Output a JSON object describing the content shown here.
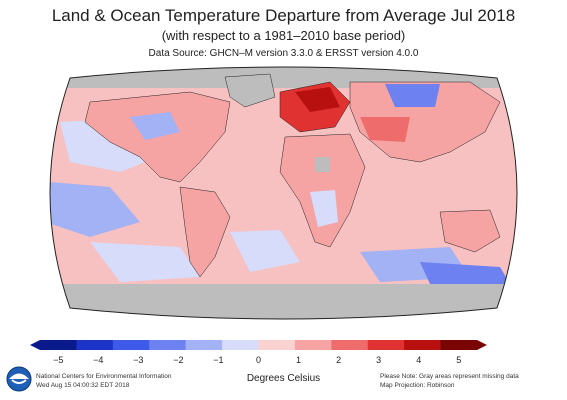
{
  "header": {
    "title": "Land & Ocean Temperature Departure from Average Jul 2018",
    "subtitle": "(with respect to a 1981–2010 base period)",
    "source": "Data Source: GHCN–M version 3.3.0 & ERSST version 4.0.0"
  },
  "scale": {
    "ticks": [
      "−5",
      "−4",
      "−3",
      "−2",
      "−1",
      "0",
      "1",
      "2",
      "3",
      "4",
      "5"
    ],
    "units": "Degrees Celsius",
    "colors": [
      "#0a1a8a",
      "#1c34c8",
      "#3e5ae8",
      "#6d82f0",
      "#a3b1f5",
      "#d6dcfa",
      "#fbd2d2",
      "#f6a3a3",
      "#ef6c6c",
      "#e13232",
      "#b80f0f",
      "#7a0505"
    ],
    "missing_color": "#bdbdbd"
  },
  "map": {
    "projection": "Robinson",
    "ocean_background": "#f7c1c1"
  },
  "footer": {
    "org": "National Centers for Environmental Information",
    "timestamp": "Wed Aug 15 04:00:32 EDT 2018",
    "note": "Please Note: Gray areas represent missing data",
    "projection": "Map Projection: Robinson"
  },
  "logo": {
    "icon": "noaa-logo-icon"
  }
}
